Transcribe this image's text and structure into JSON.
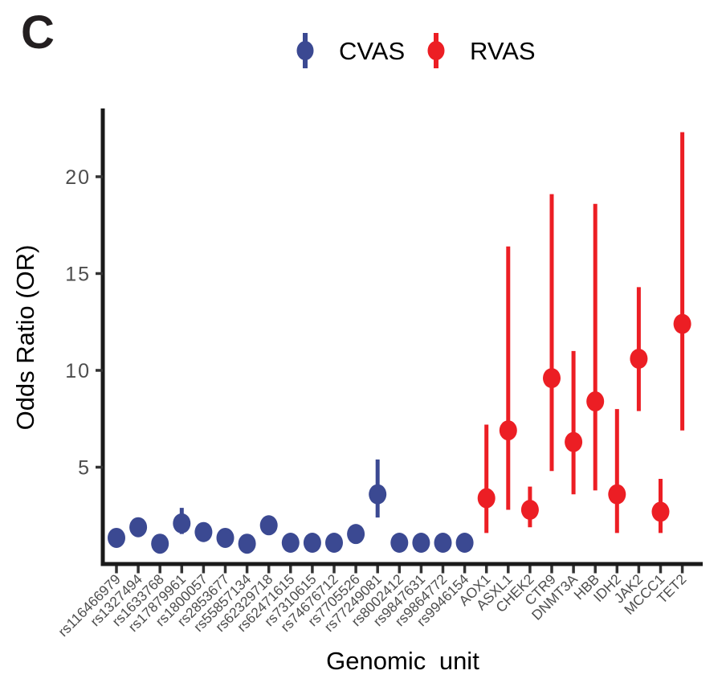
{
  "panel_label": "C",
  "legend": {
    "items": [
      {
        "label": "CVAS",
        "marker": "pointrange-icon",
        "color": "#3B4992"
      },
      {
        "label": "RVAS",
        "marker": "pointrange-icon",
        "color": "#EC1E24"
      }
    ]
  },
  "chart_data": {
    "type": "scatter",
    "subtype": "pointrange",
    "title": "",
    "xlabel": "Genomic unit",
    "ylabel": "Odds Ratio (OR)",
    "ylim": [
      0,
      23.4
    ],
    "yticks": [
      5,
      10,
      15,
      20
    ],
    "grid": false,
    "legend_position": "top",
    "categories": [
      "rs116466979",
      "rs1327494",
      "rs1633768",
      "rs17879961",
      "rs1800057",
      "rs2853677",
      "rs55857134",
      "rs62329718",
      "rs62471615",
      "rs7310615",
      "rs74676712",
      "rs7705526",
      "rs77249081",
      "rs8002412",
      "rs9847631",
      "rs9864772",
      "rs9946154",
      "AOX1",
      "ASXL1",
      "CHEK2",
      "CTR9",
      "DNMT3A",
      "HBB",
      "IDH2",
      "JAK2",
      "MCCC1",
      "TET2"
    ],
    "series": [
      {
        "name": "CVAS",
        "color": "#3B4992",
        "points": [
          {
            "x": "rs116466979",
            "or": 1.35,
            "lo": 1.35,
            "hi": 1.35
          },
          {
            "x": "rs1327494",
            "or": 1.9,
            "lo": 1.9,
            "hi": 1.9
          },
          {
            "x": "rs1633768",
            "or": 1.05,
            "lo": 1.05,
            "hi": 1.05
          },
          {
            "x": "rs17879961",
            "or": 2.1,
            "lo": 1.55,
            "hi": 2.9
          },
          {
            "x": "rs1800057",
            "or": 1.65,
            "lo": 1.65,
            "hi": 1.65
          },
          {
            "x": "rs2853677",
            "or": 1.35,
            "lo": 1.35,
            "hi": 1.35
          },
          {
            "x": "rs55857134",
            "or": 1.05,
            "lo": 1.05,
            "hi": 1.05
          },
          {
            "x": "rs62329718",
            "or": 2.0,
            "lo": 2.0,
            "hi": 2.0
          },
          {
            "x": "rs62471615",
            "or": 1.1,
            "lo": 1.1,
            "hi": 1.1
          },
          {
            "x": "rs7310615",
            "or": 1.1,
            "lo": 1.1,
            "hi": 1.1
          },
          {
            "x": "rs74676712",
            "or": 1.1,
            "lo": 1.1,
            "hi": 1.1
          },
          {
            "x": "rs7705526",
            "or": 1.55,
            "lo": 1.55,
            "hi": 1.55
          },
          {
            "x": "rs77249081",
            "or": 3.6,
            "lo": 2.4,
            "hi": 5.4
          },
          {
            "x": "rs8002412",
            "or": 1.1,
            "lo": 1.1,
            "hi": 1.1
          },
          {
            "x": "rs9847631",
            "or": 1.1,
            "lo": 1.1,
            "hi": 1.1
          },
          {
            "x": "rs9864772",
            "or": 1.1,
            "lo": 1.1,
            "hi": 1.1
          },
          {
            "x": "rs9946154",
            "or": 1.1,
            "lo": 1.1,
            "hi": 1.1
          }
        ]
      },
      {
        "name": "RVAS",
        "color": "#EC1E24",
        "points": [
          {
            "x": "AOX1",
            "or": 3.4,
            "lo": 1.6,
            "hi": 7.2
          },
          {
            "x": "ASXL1",
            "or": 6.9,
            "lo": 2.8,
            "hi": 16.4
          },
          {
            "x": "CHEK2",
            "or": 2.8,
            "lo": 1.9,
            "hi": 4.0
          },
          {
            "x": "CTR9",
            "or": 9.6,
            "lo": 4.8,
            "hi": 19.1
          },
          {
            "x": "DNMT3A",
            "or": 6.3,
            "lo": 3.6,
            "hi": 11.0
          },
          {
            "x": "HBB",
            "or": 8.4,
            "lo": 3.8,
            "hi": 18.6
          },
          {
            "x": "IDH2",
            "or": 3.6,
            "lo": 1.6,
            "hi": 8.0
          },
          {
            "x": "JAK2",
            "or": 10.6,
            "lo": 7.9,
            "hi": 14.3
          },
          {
            "x": "MCCC1",
            "or": 2.7,
            "lo": 1.6,
            "hi": 4.4
          },
          {
            "x": "TET2",
            "or": 12.4,
            "lo": 6.9,
            "hi": 22.3
          }
        ]
      }
    ]
  }
}
